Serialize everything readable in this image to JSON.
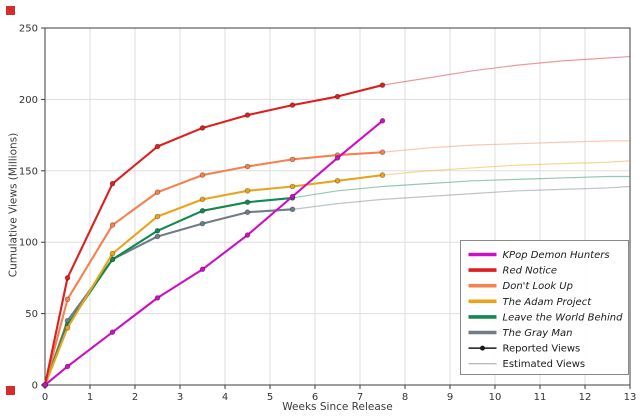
{
  "corner_markers": {
    "color": "#d62c2c"
  },
  "chart_data": {
    "type": "line",
    "title": "",
    "xlabel": "Weeks Since Release",
    "ylabel": "Cumulative Views (Millions)",
    "xlim": [
      0,
      13
    ],
    "ylim": [
      0,
      250
    ],
    "x_ticks": [
      0,
      1,
      2,
      3,
      4,
      5,
      6,
      7,
      8,
      9,
      10,
      11,
      12,
      13
    ],
    "y_ticks": [
      0,
      50,
      100,
      150,
      200,
      250
    ],
    "grid": true,
    "legend_position": "lower right",
    "series": [
      {
        "name": "KPop Demon Hunters",
        "color": "#CC0FC4",
        "reported_x": [
          0,
          0.5,
          1.5,
          2.5,
          3.5,
          4.5,
          5.5,
          6.5,
          7.5
        ],
        "reported_y": [
          0,
          13,
          37,
          61,
          81,
          105,
          132,
          159,
          185
        ],
        "estimated_x": [],
        "estimated_y": []
      },
      {
        "name": "Red Notice",
        "color": "#DC1F1F",
        "reported_x": [
          0,
          0.5,
          1.5,
          2.5,
          3.5,
          4.5,
          5.5,
          6.5,
          7.5
        ],
        "reported_y": [
          0,
          75,
          141,
          167,
          180,
          189,
          196,
          202,
          210
        ],
        "estimated_x": [
          7.5,
          8.5,
          9.5,
          10.5,
          11.5,
          12.5,
          13
        ],
        "estimated_y": [
          210,
          215,
          220,
          224,
          227,
          229,
          230
        ]
      },
      {
        "name": "Don't Look Up",
        "color": "#F4824F",
        "reported_x": [
          0,
          0.5,
          1.5,
          2.5,
          3.5,
          4.5,
          5.5,
          6.5,
          7.5
        ],
        "reported_y": [
          0,
          60,
          112,
          135,
          147,
          153,
          158,
          161,
          163
        ],
        "estimated_x": [
          7.5,
          8.5,
          9.5,
          10.5,
          11.5,
          12.5,
          13
        ],
        "estimated_y": [
          163,
          166,
          168,
          169,
          170,
          171,
          171
        ]
      },
      {
        "name": "The Adam Project",
        "color": "#E8A51B",
        "reported_x": [
          0,
          0.5,
          1.5,
          2.5,
          3.5,
          4.5,
          5.5,
          6.5,
          7.5
        ],
        "reported_y": [
          0,
          40,
          92,
          118,
          130,
          136,
          139,
          143,
          147
        ],
        "estimated_x": [
          7.5,
          8.5,
          9.5,
          10.5,
          11.5,
          12.5,
          13
        ],
        "estimated_y": [
          147,
          150,
          152,
          154,
          155,
          156,
          157
        ]
      },
      {
        "name": "Leave the World Behind",
        "color": "#108A4E",
        "reported_x": [
          0,
          0.5,
          1.5,
          2.5,
          3.5,
          4.5,
          5.5
        ],
        "reported_y": [
          0,
          42,
          88,
          108,
          122,
          128,
          131
        ],
        "estimated_x": [
          5.5,
          6.5,
          7.5,
          8.5,
          9.5,
          10.5,
          11.5,
          12.5,
          13
        ],
        "estimated_y": [
          131,
          136,
          139,
          141,
          143,
          144,
          145,
          146,
          146
        ]
      },
      {
        "name": "The Gray Man",
        "color": "#6F7D87",
        "reported_x": [
          0,
          0.5,
          1.5,
          2.5,
          3.5,
          4.5,
          5.5
        ],
        "reported_y": [
          0,
          45,
          88,
          104,
          113,
          121,
          123
        ],
        "estimated_x": [
          5.5,
          6.5,
          7.5,
          8.5,
          9.5,
          10.5,
          11.5,
          12.5,
          13
        ],
        "estimated_y": [
          123,
          127,
          130,
          132,
          134,
          136,
          137,
          138,
          139
        ]
      }
    ],
    "legend_extras": [
      {
        "name": "Reported Views",
        "style": "reported",
        "color": "#1a1a1a"
      },
      {
        "name": "Estimated Views",
        "style": "estimated",
        "color": "#bbbbbb"
      }
    ]
  }
}
